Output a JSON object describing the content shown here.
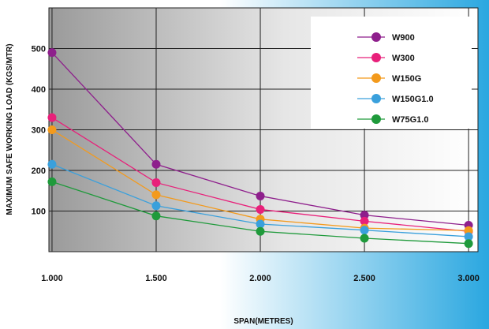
{
  "chart_data": {
    "type": "line",
    "xlabel": "SPAN(METRES)",
    "ylabel": "MAXIMUM SAFE WORKING LOAD (KGS/MTR)",
    "x_tick_labels": [
      "1.000",
      "1.500",
      "2.000",
      "2.500",
      "3.000"
    ],
    "y_tick_labels": [
      "100",
      "200",
      "300",
      "400",
      "500"
    ],
    "xlim": [
      0.985,
      3.045
    ],
    "ylim": [
      0,
      600
    ],
    "grid": true,
    "legend_position": "top-right",
    "series": [
      {
        "name": "W900",
        "color": "#8e1f8c",
        "x": [
          1.0,
          1.5,
          2.0,
          2.5,
          3.0
        ],
        "y": [
          490,
          215,
          137,
          90,
          65
        ]
      },
      {
        "name": "W300",
        "color": "#e8207a",
        "x": [
          1.0,
          1.5,
          2.0,
          2.5,
          3.0
        ],
        "y": [
          330,
          170,
          104,
          75,
          50
        ]
      },
      {
        "name": "W150G",
        "color": "#f39a1c",
        "x": [
          1.0,
          1.5,
          2.0,
          2.5,
          3.0
        ],
        "y": [
          300,
          140,
          80,
          58,
          52
        ]
      },
      {
        "name": "W150G1.0",
        "color": "#3aa0dc",
        "x": [
          1.0,
          1.5,
          2.0,
          2.5,
          3.0
        ],
        "y": [
          215,
          113,
          68,
          53,
          37
        ]
      },
      {
        "name": "W75G1.0",
        "color": "#1f9a3b",
        "x": [
          1.0,
          1.5,
          2.0,
          2.5,
          3.0
        ],
        "y": [
          172,
          88,
          50,
          33,
          20
        ]
      }
    ]
  }
}
